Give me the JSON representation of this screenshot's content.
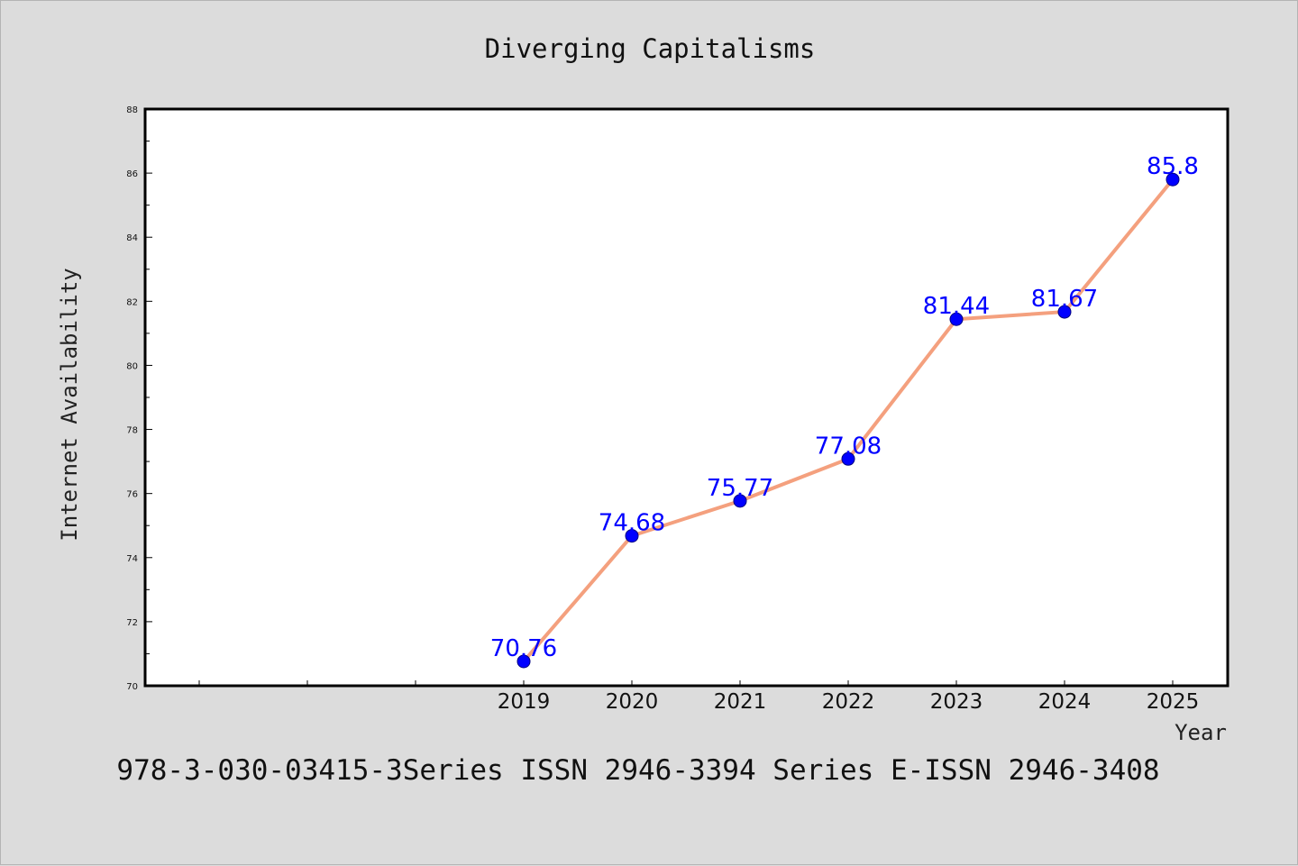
{
  "chart_data": {
    "type": "line",
    "title": "Diverging Capitalisms",
    "xlabel": "Year",
    "ylabel": "Internet Availability",
    "categories": [
      "2019",
      "2020",
      "2021",
      "2022",
      "2023",
      "2024",
      "2025"
    ],
    "series": [
      {
        "values": [
          70.76,
          74.68,
          75.77,
          77.08,
          81.44,
          81.67,
          85.8
        ]
      }
    ],
    "data_labels": [
      "70.76",
      "74.68",
      "75.77",
      "77.08",
      "81.44",
      "81.67",
      "85.8"
    ],
    "yticks": [
      "70",
      "72",
      "74",
      "76",
      "78",
      "80",
      "82",
      "84",
      "86",
      "88"
    ],
    "ylim": [
      70,
      88
    ],
    "grid": false,
    "legend": "none",
    "line_color": "#f4a07e",
    "marker_color": "#0000ff",
    "label_color": "#0000ff"
  },
  "footer": "978-3-030-03415-3Series ISSN 2946-3394 Series E-ISSN 2946-3408"
}
